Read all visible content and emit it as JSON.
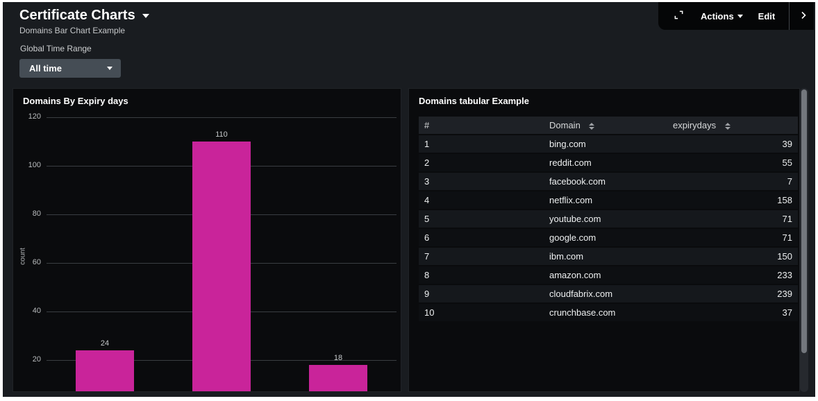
{
  "header": {
    "title": "Certificate Charts",
    "subtitle": "Domains Bar Chart Example",
    "actions_label": "Actions",
    "edit_label": "Edit"
  },
  "filters": {
    "time_range_label": "Global Time Range",
    "time_range_value": "All time"
  },
  "colors": {
    "accent_magenta": "#c9249a",
    "page_background": "#191c20",
    "panel_background": "#0a0b0d",
    "topbar_background": "#050607",
    "gridline": "#3a3e42"
  },
  "chart_data": {
    "type": "bar",
    "title": "Domains By Expiry days",
    "ylabel": "count",
    "ylim": [
      0,
      120
    ],
    "yticks": [
      20,
      40,
      60,
      80,
      100,
      120
    ],
    "values": [
      24,
      110,
      18
    ],
    "bar_labels": [
      "24",
      "110",
      "18"
    ],
    "bar_color": "#c9249a",
    "grid": true,
    "legend": "none",
    "note": "x-axis category labels clipped below panel edge"
  },
  "table_panel": {
    "title": "Domains tabular Example",
    "columns": [
      {
        "label": "#",
        "sortable": false
      },
      {
        "label": "Domain",
        "sortable": true
      },
      {
        "label": "expirydays",
        "sortable": true
      }
    ],
    "rows": [
      [
        "1",
        "bing.com",
        "39"
      ],
      [
        "2",
        "reddit.com",
        "55"
      ],
      [
        "3",
        "facebook.com",
        "7"
      ],
      [
        "4",
        "netflix.com",
        "158"
      ],
      [
        "5",
        "youtube.com",
        "71"
      ],
      [
        "6",
        "google.com",
        "71"
      ],
      [
        "7",
        "ibm.com",
        "150"
      ],
      [
        "8",
        "amazon.com",
        "233"
      ],
      [
        "9",
        "cloudfabrix.com",
        "239"
      ],
      [
        "10",
        "crunchbase.com",
        "37"
      ]
    ]
  }
}
